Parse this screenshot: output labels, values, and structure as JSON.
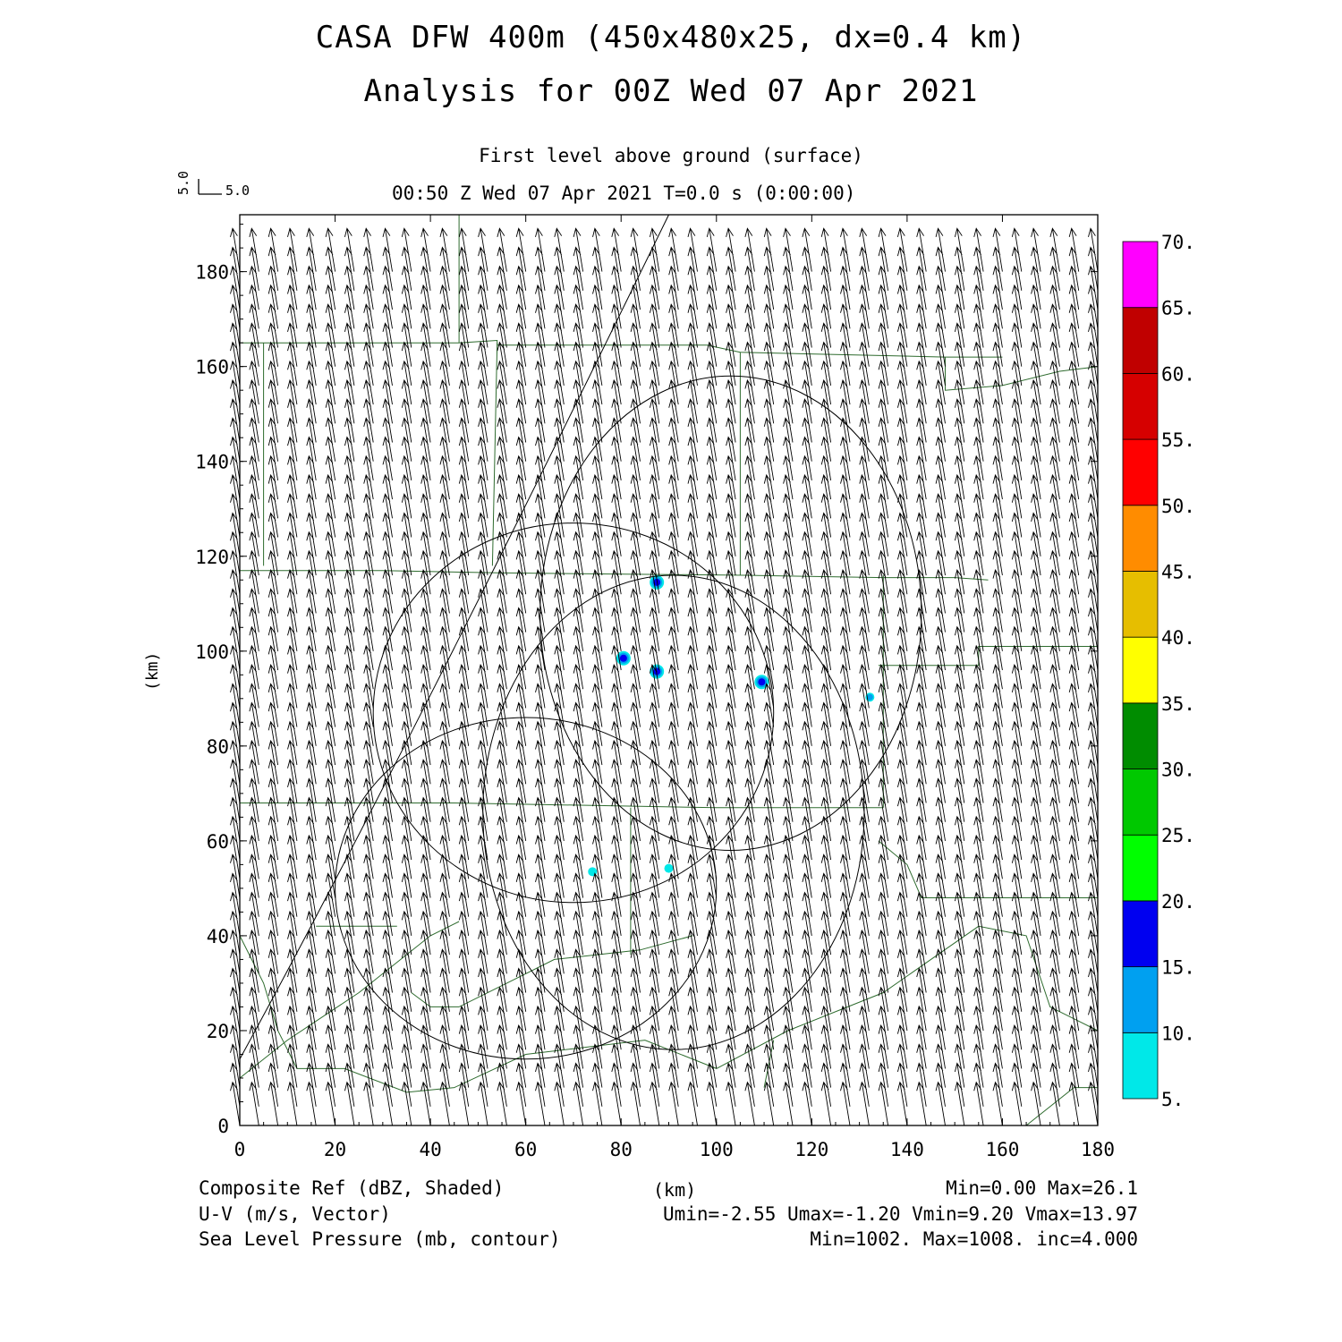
{
  "header": {
    "title_line1": "CASA DFW 400m (450x480x25, dx=0.4 km)",
    "title_line2": "Analysis for 00Z Wed 07 Apr 2021",
    "subtitle": "First level above ground (surface)",
    "time_line": "00:50 Z Wed 07 Apr 2021    T=0.0 s (0:00:00)",
    "vector_ref_u": "5.0",
    "vector_ref_v": "5.0"
  },
  "footer": {
    "line1_left": "Composite Ref (dBZ, Shaded)",
    "line1_mid": "(km)",
    "line1_right": "Min=0.00 Max=26.1",
    "line2_left": "U-V (m/s, Vector)",
    "line2_right": "Umin=-2.55 Umax=-1.20 Vmin=9.20 Vmax=13.97",
    "line3_left": "Sea Level Pressure (mb, contour)",
    "line3_right": "Min=1002. Max=1008. inc=4.000"
  },
  "chart_data": {
    "type": "heatmap",
    "xlabel": "(km)",
    "ylabel": "(km)",
    "xlim": [
      0,
      180
    ],
    "ylim": [
      0,
      192
    ],
    "x_ticks": [
      0,
      20,
      40,
      60,
      80,
      100,
      120,
      140,
      160,
      180
    ],
    "y_ticks": [
      0,
      20,
      40,
      60,
      80,
      100,
      120,
      140,
      160,
      180
    ],
    "colorbar": {
      "levels": [
        "5.",
        "10.",
        "15.",
        "20.",
        "25.",
        "30.",
        "35.",
        "40.",
        "45.",
        "50.",
        "55.",
        "60.",
        "65.",
        "70."
      ],
      "colors": [
        "#00e8e8",
        "#00a0f0",
        "#0000f0",
        "#00ff00",
        "#00c800",
        "#008c00",
        "#ffff00",
        "#e6be00",
        "#ff8c00",
        "#ff0000",
        "#d60000",
        "#c00000",
        "#ff00ff"
      ]
    },
    "reflectivity_cells": [
      {
        "x": 87.5,
        "y": 114.5,
        "dbz": 15
      },
      {
        "x": 80.5,
        "y": 98.5,
        "dbz": 18
      },
      {
        "x": 87.5,
        "y": 95.7,
        "dbz": 16
      },
      {
        "x": 109.5,
        "y": 93.5,
        "dbz": 19
      },
      {
        "x": 132.2,
        "y": 90.3,
        "dbz": 10
      },
      {
        "x": 74.0,
        "y": 53.5,
        "dbz": 8
      },
      {
        "x": 90.0,
        "y": 54.2,
        "dbz": 8
      }
    ],
    "wind_vector": {
      "u": -1.9,
      "v": 11.5,
      "spacing_km": 4,
      "units": "m/s"
    },
    "pressure_contours": [
      {
        "value": 1004,
        "shape": "closed",
        "center": [
          103,
          108
        ],
        "rx": 40,
        "ry": 50
      },
      {
        "value": 1004,
        "shape": "closed",
        "center": [
          70,
          87
        ],
        "rx": 42,
        "ry": 40
      },
      {
        "value": 1004,
        "shape": "closed",
        "center": [
          60,
          50
        ],
        "rx": 40,
        "ry": 36
      },
      {
        "value": 1004,
        "shape": "closed",
        "center": [
          91,
          66
        ],
        "rx": 40,
        "ry": 50
      }
    ],
    "boundaries_color": "#2e6b2e"
  }
}
